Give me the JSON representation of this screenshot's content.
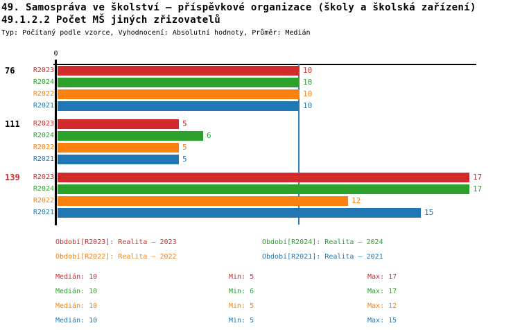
{
  "header": {
    "title_line1": "49. Samospráva ve školství – příspěvkové organizace (školy a školská zařízení)",
    "title_line2": "49.1.2.2 Počet MŠ jiných zřizovatelů",
    "subtitle": "Typ: Počítaný podle vzorce, Vyhodnocení: Absolutní hodnoty, Průměr: Medián"
  },
  "colors": {
    "r2023": "#d22b2b",
    "r2024": "#2ca22c",
    "r2022": "#fb810f",
    "r2021": "#1f77b4",
    "median_line": "#2e80c4",
    "axis": "#000000",
    "highlight_group_label": "#d22b2b"
  },
  "chart_data": {
    "type": "bar",
    "orientation": "horizontal",
    "title": "49.1.2.2 Počet MŠ jiných zřizovatelů",
    "x_axis": {
      "zero_label": "0",
      "range": [
        0,
        17.3
      ],
      "ticks_labeled": [
        "0"
      ]
    },
    "median_line_value": 10,
    "series": [
      "R2023",
      "R2024",
      "R2022",
      "R2021"
    ],
    "series_colors": [
      "#d22b2b",
      "#2ca22c",
      "#fb810f",
      "#1f77b4"
    ],
    "groups": [
      {
        "label": "76",
        "label_color": "#000000",
        "values": [
          10,
          10,
          10,
          10
        ]
      },
      {
        "label": "111",
        "label_color": "#000000",
        "values": [
          5,
          6,
          5,
          5
        ]
      },
      {
        "label": "139",
        "label_color": "#d22b2b",
        "values": [
          17,
          17,
          12,
          15
        ]
      }
    ]
  },
  "legend": {
    "entries": [
      {
        "text": "Období[R2023]: Realita – 2023",
        "color": "#d22b2b"
      },
      {
        "text": "Období[R2024]: Realita – 2024",
        "color": "#2ca22c"
      },
      {
        "text": "Období[R2022]: Realita – 2022",
        "color": "#fb810f"
      },
      {
        "text": "Období[R2021]: Realita – 2021",
        "color": "#1f77b4"
      }
    ]
  },
  "stats": {
    "labels": {
      "median": "Medián",
      "min": "Min",
      "max": "Max"
    },
    "rows": [
      {
        "color": "#d22b2b",
        "median": "10",
        "min": "5",
        "max": "17"
      },
      {
        "color": "#2ca22c",
        "median": "10",
        "min": "6",
        "max": "17"
      },
      {
        "color": "#fb810f",
        "median": "10",
        "min": "5",
        "max": "12"
      },
      {
        "color": "#1f77b4",
        "median": "10",
        "min": "5",
        "max": "15"
      }
    ]
  }
}
